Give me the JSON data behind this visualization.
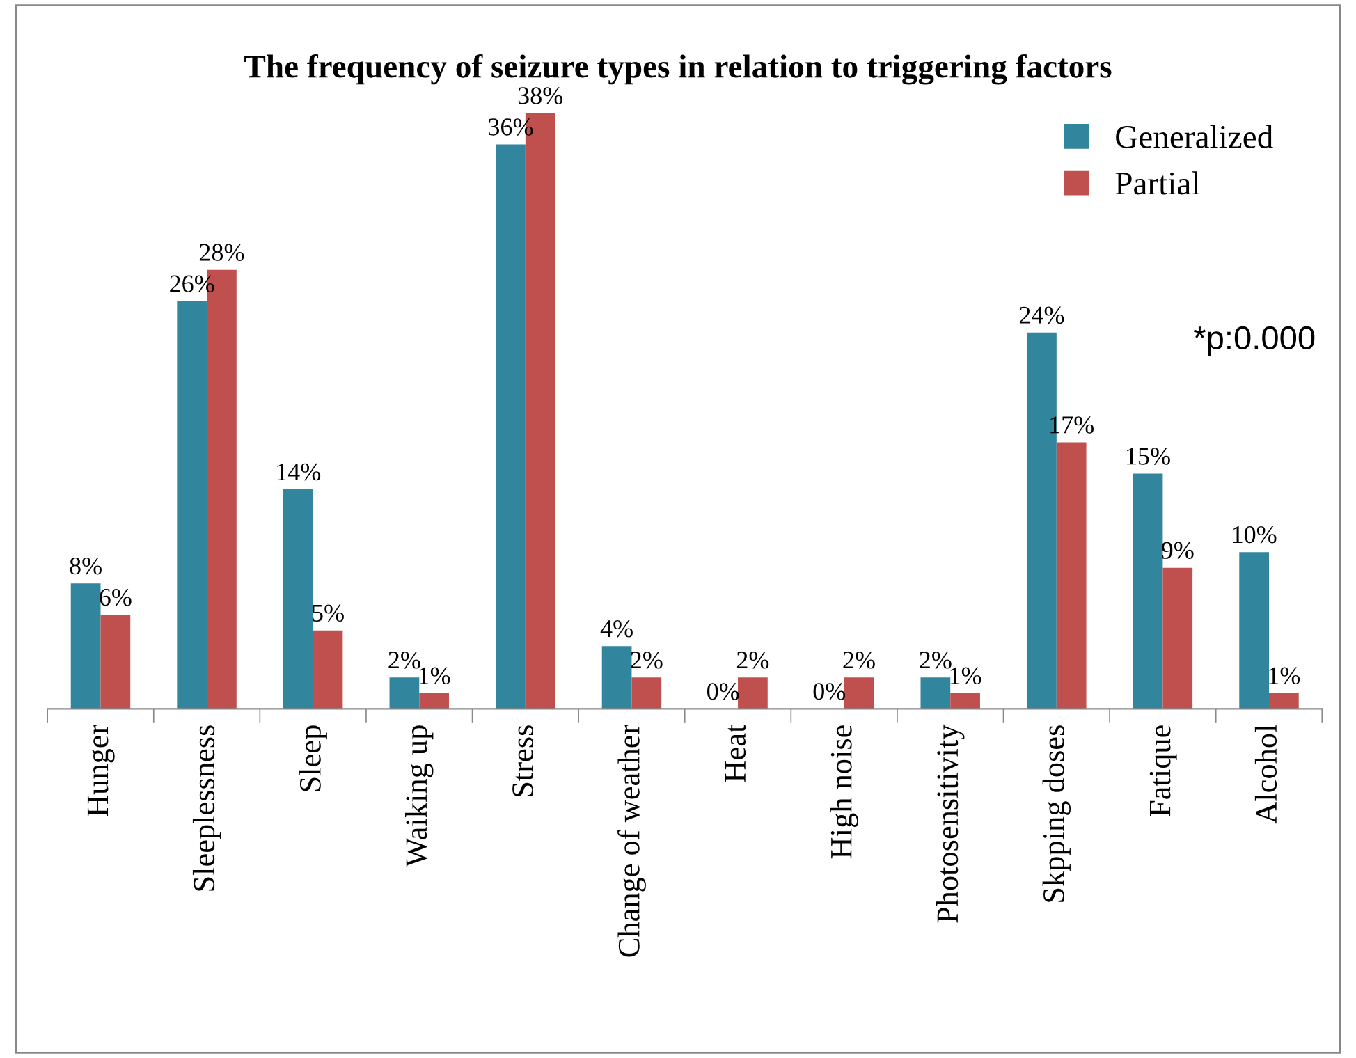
{
  "chart_data": {
    "type": "bar",
    "title": "The frequency of seizure types in relation to triggering factors",
    "categories": [
      "Hunger",
      "Sleeplessness",
      "Sleep",
      "Waiking up",
      "Stress",
      "Change of weather",
      "Heat",
      "High noise",
      "Photosensitivity",
      "Skpping doses",
      "Fatique",
      "Alcohol"
    ],
    "series": [
      {
        "name": "Generalized",
        "color": "#31859c",
        "values": [
          8,
          26,
          14,
          2,
          36,
          4,
          0,
          0,
          2,
          24,
          15,
          10
        ],
        "value_labels": [
          "8%",
          "26%",
          "14%",
          "2%",
          "36%",
          "4%",
          "0%",
          "0%",
          "2%",
          "24%",
          "15%",
          "10%"
        ]
      },
      {
        "name": "Partial",
        "color": "#c0504d",
        "values": [
          6,
          28,
          5,
          1,
          38,
          2,
          2,
          2,
          1,
          17,
          9,
          1
        ],
        "value_labels": [
          "6%",
          "28%",
          "5%",
          "1%",
          "38%",
          "2%",
          "2%",
          "2%",
          "1%",
          "17%",
          "9%",
          "1%"
        ]
      }
    ],
    "annotations": [
      "*p:0.000"
    ],
    "legend": "top right",
    "grid": false
  }
}
